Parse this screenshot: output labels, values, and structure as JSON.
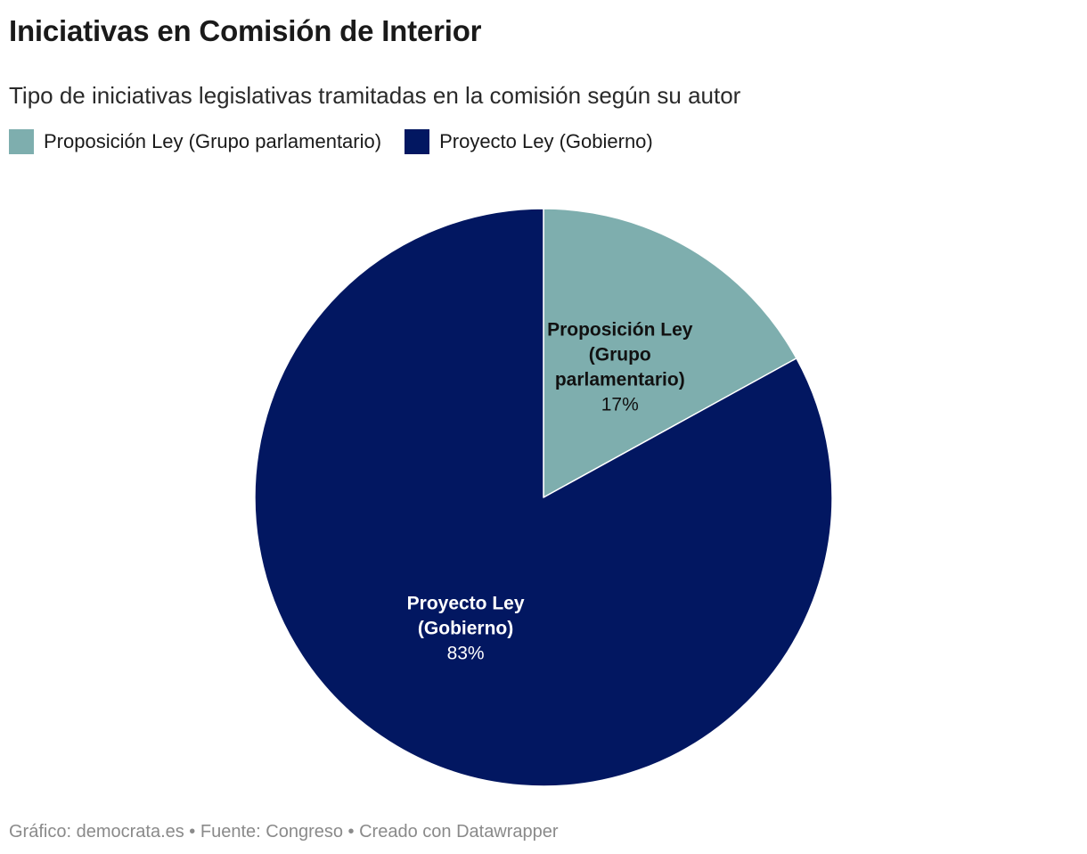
{
  "title": "Iniciativas en Comisión de Interior",
  "subtitle": "Tipo de iniciativas legislativas tramitadas en la comisión según su autor",
  "legend": [
    {
      "label": "Proposición Ley (Grupo parlamentario)",
      "color": "#7eaeae"
    },
    {
      "label": "Proyecto Ley (Gobierno)",
      "color": "#021761"
    }
  ],
  "footer": {
    "chart_credit": "Gráfico: democrata.es",
    "separator": " • ",
    "source": "Fuente: Congreso",
    "tool": "Creado con Datawrapper"
  },
  "chart_data": {
    "type": "pie",
    "slices": [
      {
        "name": "Proposición Ley (Grupo parlamentario)",
        "label_lines": [
          "Proposición Ley",
          "(Grupo",
          "parlamentario)"
        ],
        "value": 17,
        "value_label": "17%",
        "color": "#7eaeae",
        "label_color": "#111111"
      },
      {
        "name": "Proyecto Ley (Gobierno)",
        "label_lines": [
          "Proyecto Ley",
          "(Gobierno)"
        ],
        "value": 83,
        "value_label": "83%",
        "color": "#021761",
        "label_color": "#ffffff"
      }
    ]
  }
}
